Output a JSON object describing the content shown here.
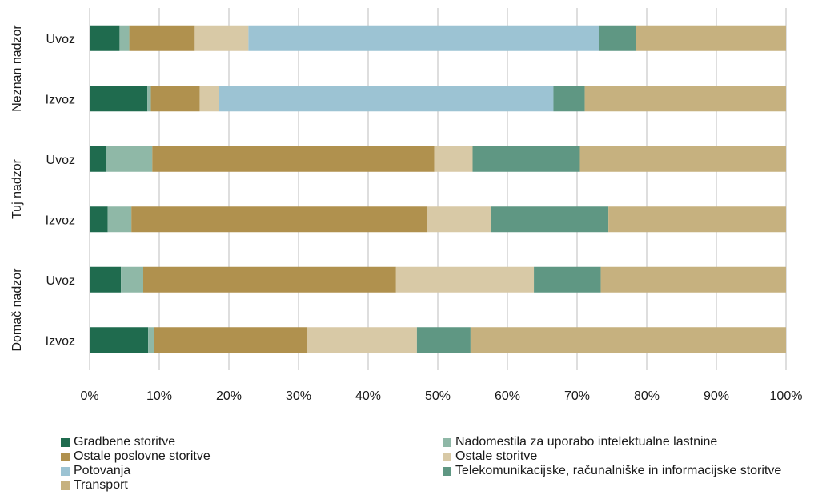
{
  "chart_data": {
    "type": "bar",
    "orientation": "horizontal",
    "stacked": "percent",
    "groups": [
      {
        "name": "Neznan nadzor",
        "categories": [
          "Uvoz",
          "Izvoz"
        ]
      },
      {
        "name": "Tuj nadzor",
        "categories": [
          "Uvoz",
          "Izvoz"
        ]
      },
      {
        "name": "Domač nadzor",
        "categories": [
          "Uvoz",
          "Izvoz"
        ]
      }
    ],
    "xlim": [
      0,
      100
    ],
    "xticks": [
      "0%",
      "10%",
      "20%",
      "30%",
      "40%",
      "50%",
      "60%",
      "70%",
      "80%",
      "90%",
      "100%"
    ],
    "grid": "vertical",
    "legend_position": "bottom",
    "series": [
      {
        "name": "Gradbene storitve",
        "color": "#1f6b4e",
        "values": [
          4.3,
          8.3,
          2.4,
          2.6,
          4.5,
          8.4
        ]
      },
      {
        "name": "Nadomestila za uporabo intelektualne lastnine",
        "color": "#8fb8a7",
        "values": [
          1.4,
          0.5,
          6.6,
          3.4,
          3.2,
          0.9
        ]
      },
      {
        "name": "Ostale poslovne storitve",
        "color": "#b0914e",
        "values": [
          9.4,
          7.0,
          40.5,
          42.4,
          36.3,
          21.9
        ]
      },
      {
        "name": "Ostale storitve",
        "color": "#d8c9a6",
        "values": [
          7.7,
          2.8,
          5.5,
          9.2,
          19.8,
          15.8
        ]
      },
      {
        "name": "Potovanja",
        "color": "#9cc3d3",
        "values": [
          50.3,
          48.0,
          0,
          0,
          0,
          0
        ]
      },
      {
        "name": "Telekomunikacijske, računalniške in informacijske storitve",
        "color": "#5f9783",
        "values": [
          5.3,
          4.5,
          15.4,
          16.9,
          9.6,
          7.7
        ]
      },
      {
        "name": "Transport",
        "color": "#c6b17f",
        "values": [
          21.6,
          28.9,
          29.6,
          25.5,
          26.6,
          45.3
        ]
      }
    ]
  }
}
